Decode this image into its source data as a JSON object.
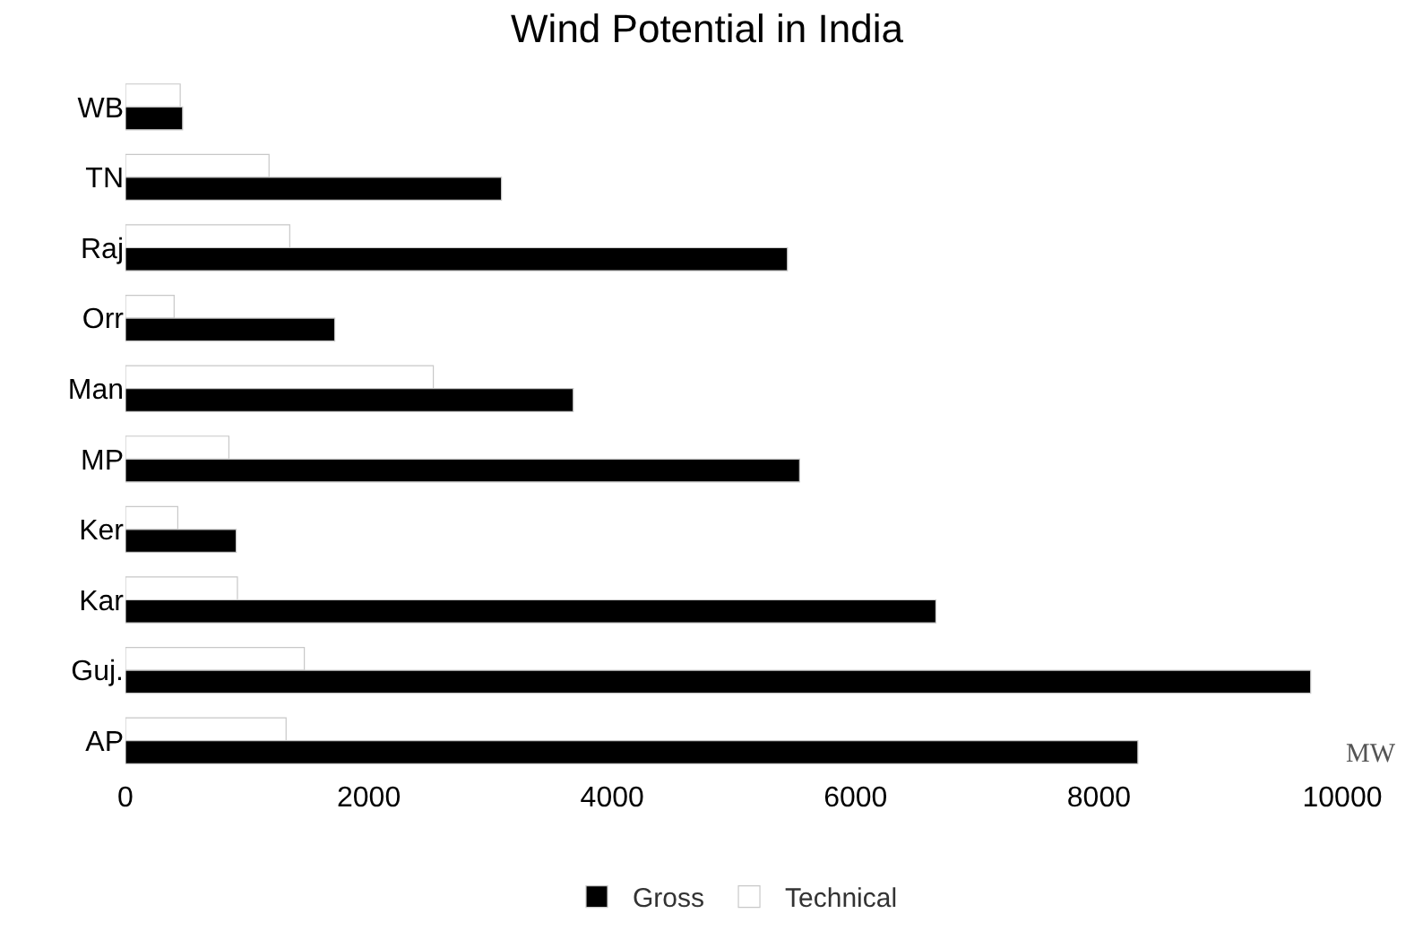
{
  "chart_data": {
    "type": "bar",
    "orientation": "horizontal",
    "title": "Wind Potential in India",
    "xlabel": "MW",
    "categories": [
      "WB",
      "TN",
      "Raj",
      "Orr",
      "Man",
      "MP",
      "Ker",
      "Kar",
      "Guj.",
      "AP"
    ],
    "series": [
      {
        "name": "Technical",
        "color": "#ffffff",
        "values": [
          450,
          1180,
          1350,
          400,
          2530,
          850,
          430,
          920,
          1470,
          1320
        ]
      },
      {
        "name": "Gross",
        "color": "#000000",
        "values": [
          470,
          3090,
          5440,
          1720,
          3680,
          5540,
          910,
          6660,
          9740,
          8320
        ]
      }
    ],
    "xlim": [
      0,
      10000
    ],
    "xticks": [
      0,
      2000,
      4000,
      6000,
      8000,
      10000
    ],
    "legend": "bottom"
  }
}
